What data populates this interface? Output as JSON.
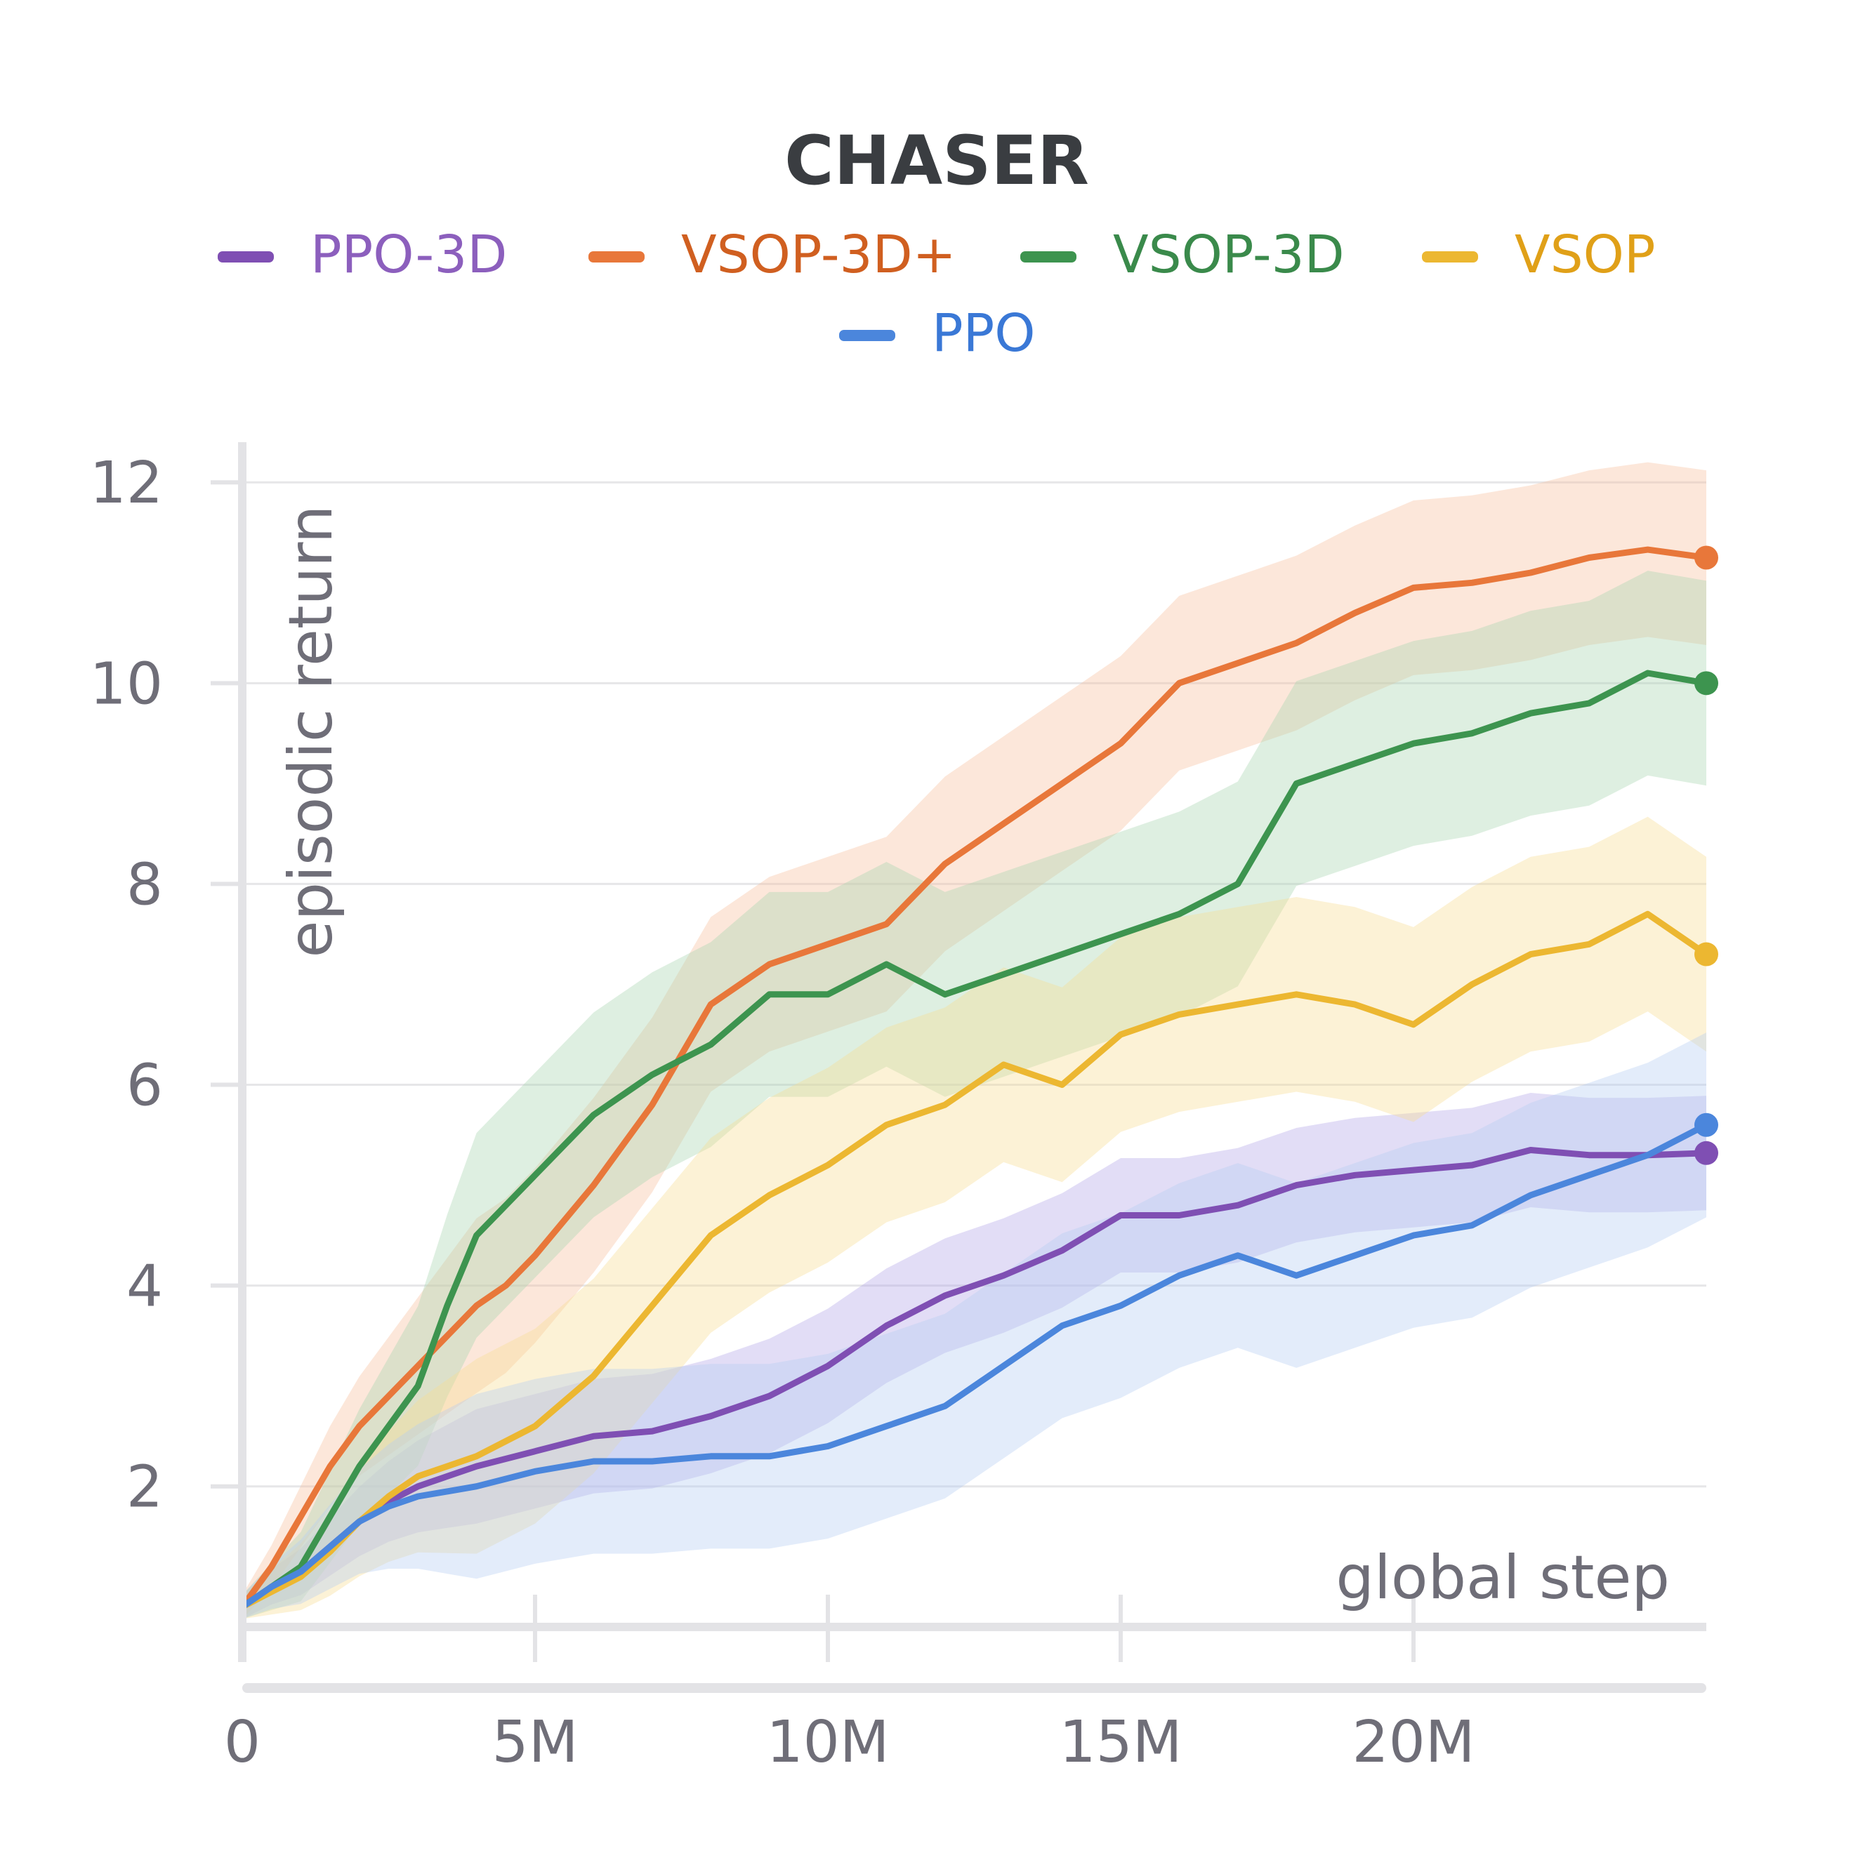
{
  "chart_data": {
    "type": "line",
    "title": "CHASER",
    "xlabel": "global step",
    "ylabel": "episodic return",
    "xlim": [
      0,
      25000000
    ],
    "ylim": [
      0.6,
      12.4
    ],
    "x_ticks": [
      {
        "value": 0,
        "label": "0"
      },
      {
        "value": 5000000,
        "label": "5M"
      },
      {
        "value": 10000000,
        "label": "10M"
      },
      {
        "value": 15000000,
        "label": "15M"
      },
      {
        "value": 20000000,
        "label": "20M"
      }
    ],
    "y_ticks": [
      {
        "value": 2,
        "label": "2"
      },
      {
        "value": 4,
        "label": "4"
      },
      {
        "value": 6,
        "label": "6"
      },
      {
        "value": 8,
        "label": "8"
      },
      {
        "value": 10,
        "label": "10"
      },
      {
        "value": 12,
        "label": "12"
      }
    ],
    "grid": true,
    "legend_position": "top",
    "series": [
      {
        "name": "PPO-3D",
        "color": "#7f4fb3",
        "text_color": "#8c5fbd",
        "band_color": "#b3a6e8",
        "x": [
          0,
          0.5,
          1,
          1.5,
          2,
          2.5,
          3,
          3.5,
          4,
          5,
          6,
          7,
          8,
          9,
          10,
          11,
          12,
          13,
          14,
          15,
          16,
          17,
          18,
          19,
          20,
          21,
          22,
          23,
          24,
          25
        ],
        "y": [
          0.8,
          1.0,
          1.15,
          1.4,
          1.65,
          1.85,
          2.0,
          2.1,
          2.2,
          2.35,
          2.5,
          2.55,
          2.7,
          2.9,
          3.2,
          3.6,
          3.9,
          4.1,
          4.35,
          4.7,
          4.7,
          4.8,
          5.0,
          5.1,
          5.15,
          5.2,
          5.35,
          5.3,
          5.3,
          5.32
        ],
        "spread": 0.45
      },
      {
        "name": "VSOP-3D+",
        "color": "#e8773a",
        "text_color": "#d05f20",
        "band_color": "#f6c09d",
        "x": [
          0,
          0.5,
          1,
          1.5,
          2,
          2.5,
          3,
          3.5,
          4,
          4.5,
          5,
          6,
          7,
          8,
          9,
          10,
          11,
          12,
          13,
          14,
          15,
          16,
          17,
          18,
          19,
          20,
          21,
          22,
          23,
          24,
          25
        ],
        "y": [
          0.8,
          1.2,
          1.7,
          2.2,
          2.6,
          2.9,
          3.2,
          3.5,
          3.8,
          4.0,
          4.3,
          5.0,
          5.8,
          6.8,
          7.2,
          7.4,
          7.6,
          8.2,
          8.6,
          9.0,
          9.4,
          10.0,
          10.2,
          10.4,
          10.7,
          10.95,
          11.0,
          11.1,
          11.25,
          11.33,
          11.25
        ],
        "spread": 0.75
      },
      {
        "name": "VSOP-3D",
        "color": "#3d944f",
        "text_color": "#3a8a4b",
        "band_color": "#a9d6b1",
        "x": [
          0,
          0.5,
          1,
          1.5,
          2,
          2.5,
          3,
          3.5,
          4,
          4.5,
          5,
          6,
          7,
          8,
          9,
          10,
          11,
          12,
          13,
          14,
          15,
          16,
          17,
          18,
          19,
          20,
          21,
          22,
          23,
          24,
          25
        ],
        "y": [
          0.8,
          1.0,
          1.2,
          1.7,
          2.2,
          2.6,
          3.0,
          3.8,
          4.5,
          4.8,
          5.1,
          5.7,
          6.1,
          6.4,
          6.9,
          6.9,
          7.2,
          6.9,
          7.1,
          7.3,
          7.5,
          7.7,
          8.0,
          9.0,
          9.2,
          9.4,
          9.5,
          9.7,
          9.8,
          10.1,
          10.0
        ],
        "spread": 0.9
      },
      {
        "name": "VSOP",
        "color": "#ecb731",
        "text_color": "#e0a018",
        "band_color": "#f7dd93",
        "x": [
          0,
          0.5,
          1,
          1.5,
          2,
          2.5,
          3,
          3.5,
          4,
          5,
          6,
          7,
          8,
          9,
          10,
          11,
          12,
          13,
          14,
          15,
          16,
          17,
          18,
          19,
          20,
          21,
          22,
          23,
          24,
          25
        ],
        "y": [
          0.8,
          0.95,
          1.1,
          1.35,
          1.65,
          1.9,
          2.1,
          2.2,
          2.3,
          2.6,
          3.1,
          3.8,
          4.5,
          4.9,
          5.2,
          5.6,
          5.8,
          6.2,
          6.0,
          6.5,
          6.7,
          6.8,
          6.9,
          6.8,
          6.6,
          7.0,
          7.3,
          7.4,
          7.7,
          7.3
        ],
        "spread": 0.85
      },
      {
        "name": "PPO",
        "color": "#4b86dc",
        "text_color": "#3a78d6",
        "band_color": "#b5cdf2",
        "x": [
          0,
          0.5,
          1,
          1.5,
          2,
          2.5,
          3,
          3.5,
          4,
          5,
          6,
          7,
          8,
          9,
          10,
          11,
          12,
          13,
          14,
          15,
          16,
          17,
          18,
          19,
          20,
          21,
          22,
          23,
          24,
          25
        ],
        "y": [
          0.8,
          1.0,
          1.15,
          1.4,
          1.65,
          1.8,
          1.9,
          1.95,
          2.0,
          2.15,
          2.25,
          2.25,
          2.3,
          2.3,
          2.4,
          2.6,
          2.8,
          3.2,
          3.6,
          3.8,
          4.1,
          4.3,
          4.1,
          4.3,
          4.5,
          4.6,
          4.9,
          5.1,
          5.3,
          5.6
        ],
        "spread": 0.8
      }
    ]
  }
}
